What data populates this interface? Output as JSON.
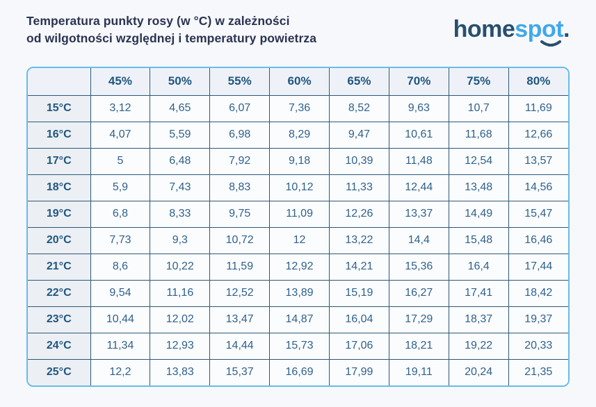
{
  "page": {
    "title_line1": "Temperatura punkty rosy (w °C) w zależności",
    "title_line2": "od wilgotności względnej i temperatury powietrza"
  },
  "logo": {
    "part_dark": "home",
    "part_light": "spot",
    "period": "."
  },
  "colors": {
    "page_bg": "#f7f8fc",
    "title_text": "#2a3350",
    "logo_dark": "#27506e",
    "logo_light": "#3fa9ea",
    "table_outer_border": "#67bce9",
    "table_inner_border": "#2b5878",
    "header_bg": "#eef2f8",
    "row_header_bg": "#eceff4",
    "cell_bg": "#fbfcfe",
    "header_text": "#1f567e",
    "cell_text": "#2f618c"
  },
  "chart_data": {
    "type": "table",
    "title": "Temperatura punkty rosy (w °C) w zależności od wilgotności względnej i temperatury powietrza",
    "corner_cell": "",
    "column_headers": [
      "45%",
      "50%",
      "55%",
      "60%",
      "65%",
      "70%",
      "75%",
      "80%"
    ],
    "row_headers": [
      "15°C",
      "16°C",
      "17°C",
      "18°C",
      "19°C",
      "20°C",
      "21°C",
      "22°C",
      "23°C",
      "24°C",
      "25°C"
    ],
    "rows": [
      [
        "3,12",
        "4,65",
        "6,07",
        "7,36",
        "8,52",
        "9,63",
        "10,7",
        "11,69"
      ],
      [
        "4,07",
        "5,59",
        "6,98",
        "8,29",
        "9,47",
        "10,61",
        "11,68",
        "12,66"
      ],
      [
        "5",
        "6,48",
        "7,92",
        "9,18",
        "10,39",
        "11,48",
        "12,54",
        "13,57"
      ],
      [
        "5,9",
        "7,43",
        "8,83",
        "10,12",
        "11,33",
        "12,44",
        "13,48",
        "14,56"
      ],
      [
        "6,8",
        "8,33",
        "9,75",
        "11,09",
        "12,26",
        "13,37",
        "14,49",
        "15,47"
      ],
      [
        "7,73",
        "9,3",
        "10,72",
        "12",
        "13,22",
        "14,4",
        "15,48",
        "16,46"
      ],
      [
        "8,6",
        "10,22",
        "11,59",
        "12,92",
        "14,21",
        "15,36",
        "16,4",
        "17,44"
      ],
      [
        "9,54",
        "11,16",
        "12,52",
        "13,89",
        "15,19",
        "16,27",
        "17,41",
        "18,42"
      ],
      [
        "10,44",
        "12,02",
        "13,47",
        "14,87",
        "16,04",
        "17,29",
        "18,37",
        "19,37"
      ],
      [
        "11,34",
        "12,93",
        "14,44",
        "15,73",
        "17,06",
        "18,21",
        "19,22",
        "20,33"
      ],
      [
        "12,2",
        "13,83",
        "15,37",
        "16,69",
        "17,99",
        "19,11",
        "20,24",
        "21,35"
      ]
    ]
  }
}
